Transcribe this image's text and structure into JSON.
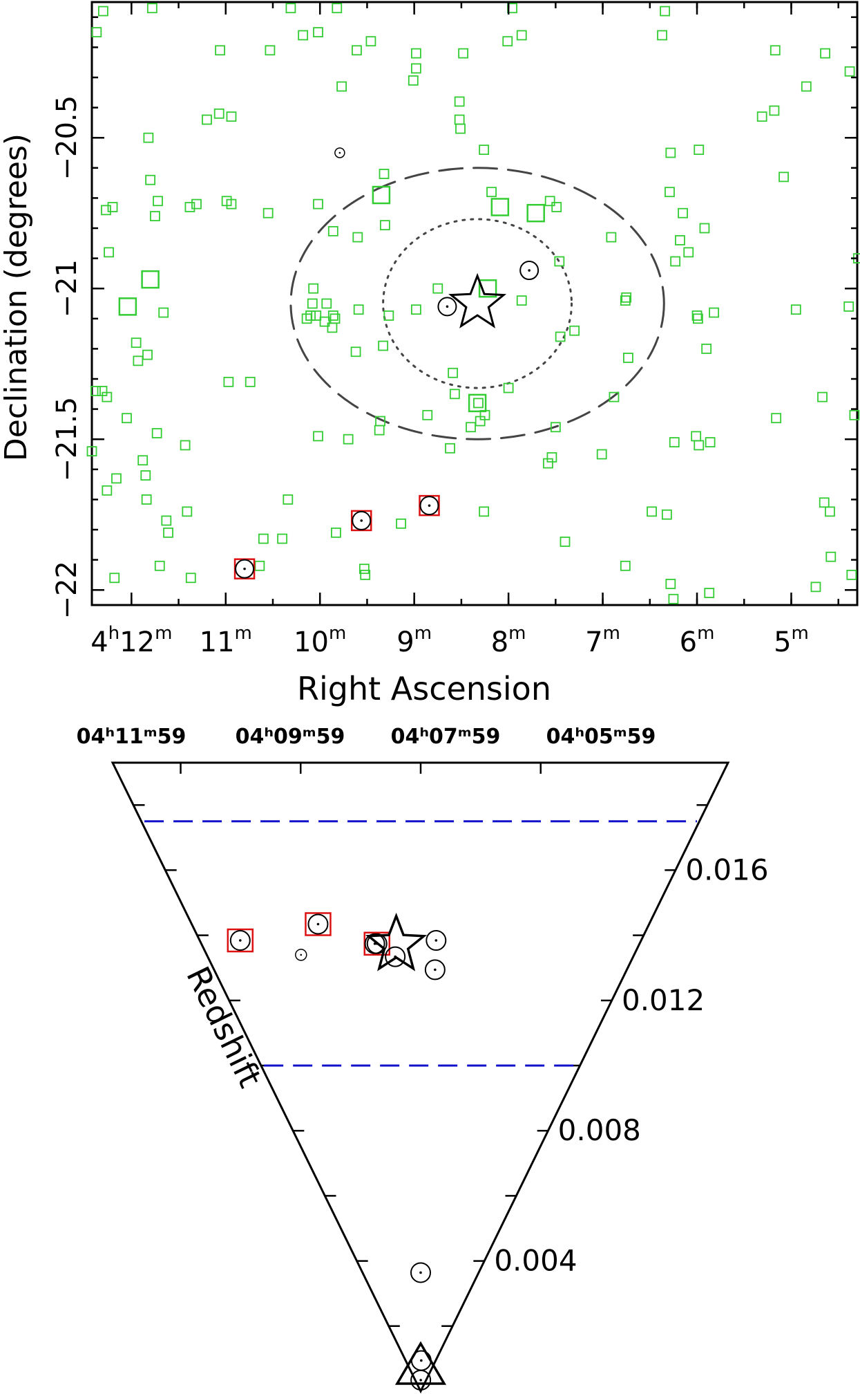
{
  "colors": {
    "green_square": "#33cc33",
    "red_square": "#dd1111",
    "blue_dash": "#1111cc",
    "black": "#000000",
    "ellipse_dash": "#444444"
  },
  "chart_data": [
    {
      "type": "scatter",
      "xlabel": "Right Ascension",
      "ylabel": "Declination (degrees)",
      "x_unit": "minutes of RA (4h offset)",
      "xlim": [
        12.42,
        4.3
      ],
      "ylim": [
        -22.05,
        -20.05
      ],
      "xticks": [
        {
          "v": 12,
          "h": "4",
          "m": "12"
        },
        {
          "v": 11,
          "h": "",
          "m": "11"
        },
        {
          "v": 10,
          "h": "",
          "m": "10"
        },
        {
          "v": 9,
          "h": "",
          "m": "9"
        },
        {
          "v": 8,
          "h": "",
          "m": "8"
        },
        {
          "v": 7,
          "h": "",
          "m": "7"
        },
        {
          "v": 6,
          "h": "",
          "m": "6"
        },
        {
          "v": 5,
          "h": "",
          "m": "5"
        }
      ],
      "yticks": [
        {
          "v": -20.5,
          "label": "−20.5"
        },
        {
          "v": -21,
          "label": "−21"
        },
        {
          "v": -21.5,
          "label": "−21.5"
        },
        {
          "v": -22,
          "label": "−22"
        }
      ],
      "ellipse_outer": {
        "center": [
          8.33,
          -21.05
        ],
        "ra_semi": 1.98,
        "dec_semi": 0.45,
        "style": "dashed"
      },
      "ellipse_inner": {
        "center": [
          8.33,
          -21.05
        ],
        "ra_semi": 1.0,
        "dec_semi": 0.28,
        "style": "dotted"
      },
      "star_group_center": [
        8.33,
        -21.05
      ],
      "green_small": [
        [
          12.3,
          -20.08
        ],
        [
          11.78,
          -20.07
        ],
        [
          10.31,
          -20.07
        ],
        [
          9.82,
          -20.07
        ],
        [
          7.96,
          -20.07
        ],
        [
          6.34,
          -20.08
        ],
        [
          12.37,
          -20.15
        ],
        [
          11.06,
          -20.21
        ],
        [
          10.53,
          -20.21
        ],
        [
          10.18,
          -20.16
        ],
        [
          10.02,
          -20.15
        ],
        [
          9.61,
          -20.21
        ],
        [
          9.46,
          -20.18
        ],
        [
          8.98,
          -20.22
        ],
        [
          8.48,
          -20.22
        ],
        [
          8.01,
          -20.18
        ],
        [
          7.86,
          -20.16
        ],
        [
          6.37,
          -20.16
        ],
        [
          5.17,
          -20.21
        ],
        [
          4.64,
          -20.22
        ],
        [
          4.38,
          -20.28
        ],
        [
          8.98,
          -20.27
        ],
        [
          9.01,
          -20.31
        ],
        [
          9.77,
          -20.33
        ],
        [
          8.52,
          -20.38
        ],
        [
          11.2,
          -20.44
        ],
        [
          11.07,
          -20.42
        ],
        [
          10.94,
          -20.43
        ],
        [
          8.52,
          -20.44
        ],
        [
          8.51,
          -20.47
        ],
        [
          5.31,
          -20.43
        ],
        [
          5.18,
          -20.41
        ],
        [
          4.84,
          -20.33
        ],
        [
          11.82,
          -20.5
        ],
        [
          8.26,
          -20.54
        ],
        [
          6.28,
          -20.55
        ],
        [
          5.98,
          -20.54
        ],
        [
          9.32,
          -20.62
        ],
        [
          8.18,
          -20.68
        ],
        [
          7.56,
          -20.71
        ],
        [
          6.29,
          -20.68
        ],
        [
          5.08,
          -20.63
        ],
        [
          11.8,
          -20.64
        ],
        [
          11.72,
          -20.71
        ],
        [
          12.27,
          -20.74
        ],
        [
          12.2,
          -20.73
        ],
        [
          11.75,
          -20.76
        ],
        [
          11.38,
          -20.73
        ],
        [
          11.31,
          -20.72
        ],
        [
          10.99,
          -20.71
        ],
        [
          10.94,
          -20.72
        ],
        [
          10.55,
          -20.75
        ],
        [
          10.02,
          -20.72
        ],
        [
          9.6,
          -20.83
        ],
        [
          9.31,
          -20.79
        ],
        [
          7.49,
          -20.73
        ],
        [
          6.15,
          -20.75
        ],
        [
          5.92,
          -20.8
        ],
        [
          6.91,
          -20.83
        ],
        [
          6.18,
          -20.84
        ],
        [
          6.23,
          -20.91
        ],
        [
          6.09,
          -20.88
        ],
        [
          12.24,
          -20.88
        ],
        [
          9.86,
          -20.81
        ],
        [
          7.46,
          -20.91
        ],
        [
          4.29,
          -20.9
        ],
        [
          8.75,
          -21.0
        ],
        [
          7.86,
          -21.04
        ],
        [
          6.75,
          -21.03
        ],
        [
          6.76,
          -21.04
        ],
        [
          10.07,
          -21.0
        ],
        [
          10.08,
          -21.05
        ],
        [
          9.93,
          -21.05
        ],
        [
          9.86,
          -21.09
        ],
        [
          9.87,
          -21.13
        ],
        [
          9.84,
          -21.1
        ],
        [
          10.04,
          -21.09
        ],
        [
          9.95,
          -21.11
        ],
        [
          10.1,
          -21.09
        ],
        [
          10.14,
          -21.1
        ],
        [
          9.59,
          -21.07
        ],
        [
          9.27,
          -21.09
        ],
        [
          8.98,
          -21.07
        ],
        [
          7.3,
          -21.14
        ],
        [
          6.0,
          -21.09
        ],
        [
          5.99,
          -21.1
        ],
        [
          5.82,
          -21.08
        ],
        [
          4.95,
          -21.07
        ],
        [
          4.39,
          -21.06
        ],
        [
          11.66,
          -21.08
        ],
        [
          11.95,
          -21.18
        ],
        [
          11.83,
          -21.22
        ],
        [
          11.93,
          -21.24
        ],
        [
          9.62,
          -21.21
        ],
        [
          9.33,
          -21.19
        ],
        [
          7.45,
          -21.16
        ],
        [
          6.73,
          -21.23
        ],
        [
          5.9,
          -21.2
        ],
        [
          10.97,
          -21.31
        ],
        [
          10.74,
          -21.31
        ],
        [
          8.59,
          -21.28
        ],
        [
          8.57,
          -21.35
        ],
        [
          8.0,
          -21.33
        ],
        [
          8.32,
          -21.38
        ],
        [
          8.25,
          -21.42
        ],
        [
          9.36,
          -21.44
        ],
        [
          9.37,
          -21.47
        ],
        [
          8.86,
          -21.42
        ],
        [
          8.3,
          -21.44
        ],
        [
          8.4,
          -21.46
        ],
        [
          7.5,
          -21.46
        ],
        [
          6.88,
          -21.36
        ],
        [
          4.67,
          -21.36
        ],
        [
          4.33,
          -21.42
        ],
        [
          12.38,
          -21.34
        ],
        [
          12.31,
          -21.34
        ],
        [
          12.26,
          -21.36
        ],
        [
          12.05,
          -21.43
        ],
        [
          12.42,
          -21.54
        ],
        [
          11.73,
          -21.48
        ],
        [
          11.43,
          -21.52
        ],
        [
          10.02,
          -21.49
        ],
        [
          9.7,
          -21.5
        ],
        [
          8.62,
          -21.53
        ],
        [
          7.58,
          -21.58
        ],
        [
          7.54,
          -21.56
        ],
        [
          7.01,
          -21.55
        ],
        [
          6.24,
          -21.51
        ],
        [
          6.01,
          -21.49
        ],
        [
          5.98,
          -21.52
        ],
        [
          5.86,
          -21.51
        ],
        [
          5.16,
          -21.43
        ],
        [
          11.88,
          -21.57
        ],
        [
          11.85,
          -21.62
        ],
        [
          12.16,
          -21.63
        ],
        [
          12.26,
          -21.67
        ],
        [
          11.84,
          -21.7
        ],
        [
          11.41,
          -21.74
        ],
        [
          10.34,
          -21.7
        ],
        [
          8.26,
          -21.74
        ],
        [
          6.48,
          -21.74
        ],
        [
          6.32,
          -21.75
        ],
        [
          4.65,
          -21.71
        ],
        [
          4.59,
          -21.74
        ],
        [
          11.63,
          -21.77
        ],
        [
          11.61,
          -21.81
        ],
        [
          10.6,
          -21.83
        ],
        [
          10.4,
          -21.83
        ],
        [
          9.83,
          -21.81
        ],
        [
          9.14,
          -21.78
        ],
        [
          7.4,
          -21.84
        ],
        [
          11.7,
          -21.92
        ],
        [
          11.37,
          -21.96
        ],
        [
          12.18,
          -21.96
        ],
        [
          10.64,
          -21.92
        ],
        [
          9.53,
          -21.93
        ],
        [
          9.52,
          -21.95
        ],
        [
          6.76,
          -21.92
        ],
        [
          6.28,
          -21.98
        ],
        [
          6.25,
          -22.03
        ],
        [
          5.87,
          -22.01
        ],
        [
          4.74,
          -21.99
        ],
        [
          4.58,
          -21.89
        ],
        [
          4.36,
          -21.95
        ]
      ],
      "green_large": [
        [
          11.8,
          -20.97
        ],
        [
          12.04,
          -21.06
        ],
        [
          9.35,
          -20.69
        ],
        [
          8.09,
          -20.73
        ],
        [
          7.71,
          -20.75
        ],
        [
          8.22,
          -21.0
        ],
        [
          8.33,
          -21.38
        ]
      ],
      "red_squares": [
        [
          10.8,
          -21.93
        ],
        [
          9.56,
          -21.77
        ],
        [
          8.84,
          -21.72
        ]
      ],
      "gal_large": [
        [
          10.8,
          -21.93
        ],
        [
          9.56,
          -21.77
        ],
        [
          8.84,
          -21.72
        ],
        [
          8.65,
          -21.06
        ],
        [
          7.78,
          -20.94
        ]
      ],
      "gal_small": [
        [
          9.79,
          -20.55
        ]
      ]
    },
    {
      "type": "scatter",
      "ylabel": "Redshift",
      "x_ticks": [
        "04ʰ11ᵐ59",
        "04ʰ09ᵐ59",
        "04ʰ07ᵐ59",
        "04ʰ05ᵐ59"
      ],
      "redshift_ticks": [
        "0.016",
        "0.012",
        "0.008",
        "0.004"
      ],
      "zlim": [
        0,
        0.0193
      ],
      "z_bounds_dashed": [
        0.0175,
        0.01
      ],
      "star": {
        "ra_offset": -0.15,
        "z": 0.0137
      },
      "triangle": {
        "ra_offset": 0,
        "z": 0.0007
      },
      "galaxies_large": [
        {
          "ra_offset": -0.82,
          "z": 0.0138,
          "red": true
        },
        {
          "ra_offset": -0.45,
          "z": 0.0143,
          "red": true
        },
        {
          "ra_offset": -0.2,
          "z": 0.0137,
          "red": true
        },
        {
          "ra_offset": -0.12,
          "z": 0.0133,
          "red": false
        },
        {
          "ra_offset": -0.21,
          "z": 0.0137,
          "red": false
        },
        {
          "ra_offset": 0.07,
          "z": 0.0138,
          "red": false
        },
        {
          "ra_offset": 0.07,
          "z": 0.0129,
          "red": false
        },
        {
          "ra_offset": 0.0,
          "z": 0.0036,
          "red": false
        },
        {
          "ra_offset": 0.04,
          "z": 0.0009,
          "red": false
        },
        {
          "ra_offset": 0.02,
          "z": 0.0003,
          "red": false
        }
      ],
      "galaxies_small": [
        {
          "ra_offset": -0.56,
          "z": 0.0134
        }
      ]
    }
  ]
}
